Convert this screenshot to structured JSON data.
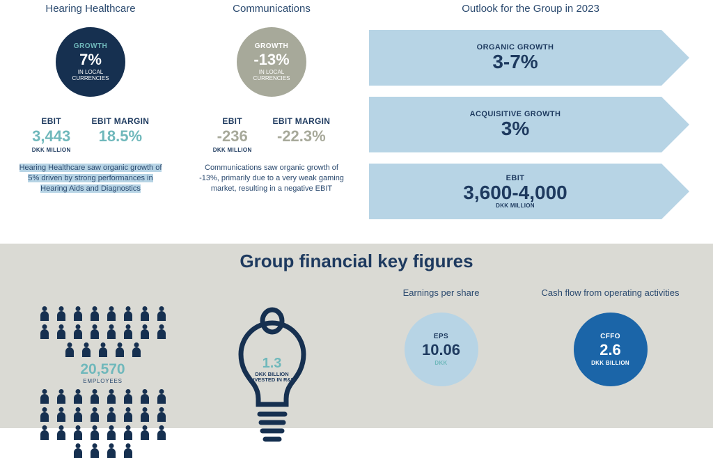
{
  "colors": {
    "navy": "#1e3a5f",
    "darknavy": "#163050",
    "teal": "#6fb8bb",
    "grey": "#a7a99a",
    "lightblue": "#b7d4e5",
    "brightblue": "#1b65a8",
    "panelgrey": "#dadad4"
  },
  "segments": [
    {
      "title": "Hearing Healthcare",
      "circle_bg": "#163050",
      "growth_label": "GROWTH",
      "growth_label_color": "#6fb8bb",
      "growth_value": "7%",
      "growth_sub": "IN LOCAL\nCURRENCIES",
      "ebit_label": "EBIT",
      "ebit_value": "3,443",
      "ebit_value_color": "#6fb8bb",
      "ebit_unit": "DKK MILLION",
      "margin_label": "EBIT MARGIN",
      "margin_value": "18.5%",
      "margin_value_color": "#6fb8bb",
      "blurb": "Hearing Healthcare saw organic growth of 5% driven by strong performances in Hearing Aids and Diagnostics",
      "blurb_highlight": true
    },
    {
      "title": "Communications",
      "circle_bg": "#a7a99a",
      "growth_label": "GROWTH",
      "growth_label_color": "#ffffff",
      "growth_value": "-13%",
      "growth_sub": "IN LOCAL\nCURRENCIES",
      "ebit_label": "EBIT",
      "ebit_value": "-236",
      "ebit_value_color": "#a7a99a",
      "ebit_unit": "DKK MILLION",
      "margin_label": "EBIT MARGIN",
      "margin_value": "-22.3%",
      "margin_value_color": "#a7a99a",
      "blurb": "Communications saw organic growth of -13%, primarily due to a very weak gaming market, resulting in a negative EBIT",
      "blurb_highlight": false
    }
  ],
  "outlook": {
    "title": "Outlook for the Group in 2023",
    "arrows": [
      {
        "label": "ORGANIC GROWTH",
        "value": "3-7%",
        "sub": "",
        "bg": "#b7d4e5"
      },
      {
        "label": "ACQUISITIVE GROWTH",
        "value": "3%",
        "sub": "",
        "bg": "#b7d4e5"
      },
      {
        "label": "EBIT",
        "value": "3,600-4,000",
        "sub": "DKK MILLION",
        "bg": "#b7d4e5"
      }
    ]
  },
  "bottom_title": "Group financial key figures",
  "employees": {
    "value": "20,570",
    "label": "EMPLOYEES",
    "value_color": "#6fb8bb",
    "icon_color": "#163050",
    "top_rows": 3,
    "bottom_rows": 4,
    "per_row": 7
  },
  "rd": {
    "value": "1.3",
    "label": "DKK BILLION\nINVESTED IN R&D",
    "value_color": "#6fb8bb",
    "stroke": "#163050"
  },
  "eps": {
    "title": "Earnings per share",
    "circle_bg": "#b7d4e5",
    "label": "EPS",
    "label_color": "#1e3a5f",
    "value": "10.06",
    "value_color": "#1e3a5f",
    "unit": "DKK",
    "unit_color": "#6fb8bb"
  },
  "cffo": {
    "title": "Cash flow from operating activities",
    "circle_bg": "#1b65a8",
    "label": "CFFO",
    "label_color": "#ffffff",
    "value": "2.6",
    "value_color": "#ffffff",
    "unit": "DKK BILLION",
    "unit_color": "#ffffff"
  }
}
